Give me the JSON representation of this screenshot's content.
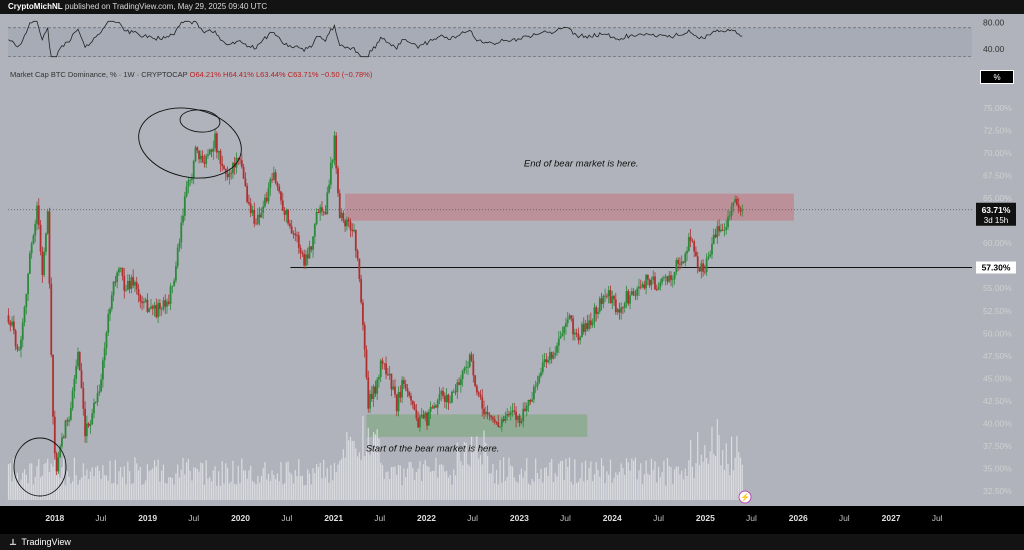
{
  "header": {
    "publisher": "CryptoMichNL",
    "publish_text": "published on TradingView.com, May 29, 2025 09:40 UTC"
  },
  "legend": {
    "symbol": "Market Cap BTC Dominance, % · 1W · CRYPTOCAP",
    "open": "O64.21%",
    "high": "H64.41%",
    "low": "L63.44%",
    "close": "C63.71%",
    "change": "−0.50 (−0.78%)"
  },
  "scale_label": "%",
  "footer": {
    "logo_text": "TradingView"
  },
  "rsi": {
    "tick_labels": [
      "80.00",
      "40.00"
    ],
    "ylim": [
      20,
      90
    ]
  },
  "chart_data": {
    "type": "candlestick",
    "ylim": [
      31.5,
      77
    ],
    "y_ticks": [
      32.5,
      35,
      37.5,
      40,
      42.5,
      45,
      47.5,
      50,
      52.5,
      55,
      57.5,
      60,
      62.5,
      65,
      67.5,
      70,
      72.5,
      75
    ],
    "y_tick_labels": [
      "32.50%",
      "35.00%",
      "37.50%",
      "40.00%",
      "42.50%",
      "45.00%",
      "47.50%",
      "50.00%",
      "52.50%",
      "55.00%",
      "57.50%",
      "60.00%",
      "62.50%",
      "65.00%",
      "67.50%",
      "70.00%",
      "72.50%",
      "75.00%"
    ],
    "x_range": [
      "2017-07-01",
      "2027-11-15"
    ],
    "x_ticks": [
      {
        "date": "2018-01-01",
        "label": "2018"
      },
      {
        "date": "2018-07-01",
        "label": "Jul"
      },
      {
        "date": "2019-01-01",
        "label": "2019"
      },
      {
        "date": "2019-07-01",
        "label": "Jul"
      },
      {
        "date": "2020-01-01",
        "label": "2020"
      },
      {
        "date": "2020-07-01",
        "label": "Jul"
      },
      {
        "date": "2021-01-01",
        "label": "2021"
      },
      {
        "date": "2021-07-01",
        "label": "Jul"
      },
      {
        "date": "2022-01-01",
        "label": "2022"
      },
      {
        "date": "2022-07-01",
        "label": "Jul"
      },
      {
        "date": "2023-01-01",
        "label": "2023"
      },
      {
        "date": "2023-07-01",
        "label": "Jul"
      },
      {
        "date": "2024-01-01",
        "label": "2024"
      },
      {
        "date": "2024-07-01",
        "label": "Jul"
      },
      {
        "date": "2025-01-01",
        "label": "2025"
      },
      {
        "date": "2025-07-01",
        "label": "Jul"
      },
      {
        "date": "2026-01-01",
        "label": "2026"
      },
      {
        "date": "2026-07-01",
        "label": "Jul"
      },
      {
        "date": "2027-01-01",
        "label": "2027"
      },
      {
        "date": "2027-07-01",
        "label": "Jul"
      }
    ],
    "price_path": [
      [
        "2017-07-03",
        52
      ],
      [
        "2017-08-14",
        48
      ],
      [
        "2017-09-11",
        55
      ],
      [
        "2017-10-02",
        60
      ],
      [
        "2017-10-23",
        64
      ],
      [
        "2017-11-13",
        57
      ],
      [
        "2017-12-04",
        63
      ],
      [
        "2017-12-25",
        40
      ],
      [
        "2018-01-08",
        34.5
      ],
      [
        "2018-01-29",
        38
      ],
      [
        "2018-03-05",
        42
      ],
      [
        "2018-04-02",
        48
      ],
      [
        "2018-04-30",
        38.5
      ],
      [
        "2018-06-04",
        42
      ],
      [
        "2018-07-02",
        45
      ],
      [
        "2018-08-13",
        55
      ],
      [
        "2018-09-10",
        57
      ],
      [
        "2018-10-08",
        55
      ],
      [
        "2018-11-05",
        56
      ],
      [
        "2018-12-10",
        53
      ],
      [
        "2019-01-07",
        53
      ],
      [
        "2019-02-04",
        52.5
      ],
      [
        "2019-03-11",
        53
      ],
      [
        "2019-04-08",
        55
      ],
      [
        "2019-05-06",
        60
      ],
      [
        "2019-05-27",
        65
      ],
      [
        "2019-06-17",
        67
      ],
      [
        "2019-07-08",
        70
      ],
      [
        "2019-07-29",
        69
      ],
      [
        "2019-08-26",
        70
      ],
      [
        "2019-09-23",
        71.5
      ],
      [
        "2019-10-14",
        68.5
      ],
      [
        "2019-11-11",
        67.5
      ],
      [
        "2019-12-09",
        69
      ],
      [
        "2020-01-06",
        68.5
      ],
      [
        "2020-02-03",
        64
      ],
      [
        "2020-03-02",
        62.5
      ],
      [
        "2020-04-06",
        64.5
      ],
      [
        "2020-05-11",
        67.5
      ],
      [
        "2020-06-08",
        65
      ],
      [
        "2020-07-06",
        62.5
      ],
      [
        "2020-08-03",
        61
      ],
      [
        "2020-09-07",
        58
      ],
      [
        "2020-10-05",
        60
      ],
      [
        "2020-11-02",
        64
      ],
      [
        "2020-11-30",
        64
      ],
      [
        "2021-01-04",
        71.5
      ],
      [
        "2021-01-25",
        63.5
      ],
      [
        "2021-02-22",
        62
      ],
      [
        "2021-03-22",
        61.5
      ],
      [
        "2021-04-19",
        54
      ],
      [
        "2021-05-17",
        42
      ],
      [
        "2021-06-14",
        44
      ],
      [
        "2021-07-12",
        47
      ],
      [
        "2021-08-09",
        45
      ],
      [
        "2021-09-06",
        42
      ],
      [
        "2021-10-04",
        45
      ],
      [
        "2021-11-01",
        43
      ],
      [
        "2021-11-29",
        40
      ],
      [
        "2022-01-03",
        40.5
      ],
      [
        "2022-01-31",
        41.5
      ],
      [
        "2022-02-28",
        43
      ],
      [
        "2022-03-28",
        42.5
      ],
      [
        "2022-04-25",
        44
      ],
      [
        "2022-05-23",
        45.5
      ],
      [
        "2022-06-20",
        47.5
      ],
      [
        "2022-07-18",
        43
      ],
      [
        "2022-08-15",
        41.5
      ],
      [
        "2022-09-12",
        40.5
      ],
      [
        "2022-10-10",
        40
      ],
      [
        "2022-11-07",
        40.5
      ],
      [
        "2022-12-05",
        41
      ],
      [
        "2023-01-02",
        40.5
      ],
      [
        "2023-01-30",
        42
      ],
      [
        "2023-02-27",
        43.5
      ],
      [
        "2023-03-27",
        46
      ],
      [
        "2023-04-24",
        47.5
      ],
      [
        "2023-05-22",
        48
      ],
      [
        "2023-06-19",
        50
      ],
      [
        "2023-07-17",
        51.5
      ],
      [
        "2023-08-14",
        49.5
      ],
      [
        "2023-09-11",
        50.5
      ],
      [
        "2023-10-09",
        51.5
      ],
      [
        "2023-11-06",
        53
      ],
      [
        "2023-12-04",
        54.5
      ],
      [
        "2024-01-01",
        53.5
      ],
      [
        "2024-01-29",
        52
      ],
      [
        "2024-02-26",
        54
      ],
      [
        "2024-03-25",
        54
      ],
      [
        "2024-04-22",
        55.5
      ],
      [
        "2024-05-20",
        56
      ],
      [
        "2024-06-17",
        55.5
      ],
      [
        "2024-07-15",
        55.5
      ],
      [
        "2024-08-12",
        56
      ],
      [
        "2024-09-09",
        57.5
      ],
      [
        "2024-10-07",
        58
      ],
      [
        "2024-11-04",
        61
      ],
      [
        "2024-12-02",
        57
      ],
      [
        "2024-12-30",
        57.5
      ],
      [
        "2025-01-27",
        60
      ],
      [
        "2025-02-24",
        61.5
      ],
      [
        "2025-03-24",
        62.5
      ],
      [
        "2025-04-21",
        64.5
      ],
      [
        "2025-05-26",
        63.71
      ]
    ],
    "volume_range": [
      0,
      10
    ],
    "current_price": 63.71,
    "current_price_label": "63.71%",
    "countdown_label": "3d 15h",
    "level_line": {
      "value": 57.3,
      "label": "57.30%",
      "from": "2020-07-15"
    },
    "zones": [
      {
        "name": "top-resistance-zone",
        "x1": "2021-02-15",
        "x2": "2025-12-15",
        "y1": 62.5,
        "y2": 65.5,
        "color": "#c0848c"
      },
      {
        "name": "bottom-support-zone",
        "x1": "2021-05-10",
        "x2": "2023-09-25",
        "y1": 38.5,
        "y2": 41.0,
        "color": "#86a987"
      }
    ],
    "annotations": [
      {
        "name": "end-of-bear-annotation",
        "text": "End of bear market is here.",
        "date": "2023-09-01",
        "value": 68.5
      },
      {
        "name": "start-of-bear-annotation",
        "text": "Start of the bear market is here.",
        "date": "2022-01-25",
        "value": 36.9
      }
    ],
    "colors": {
      "up": "#2a8a3a",
      "down": "#b03030",
      "background": "#b0b3bb",
      "volume": "#e6e6ea"
    }
  }
}
